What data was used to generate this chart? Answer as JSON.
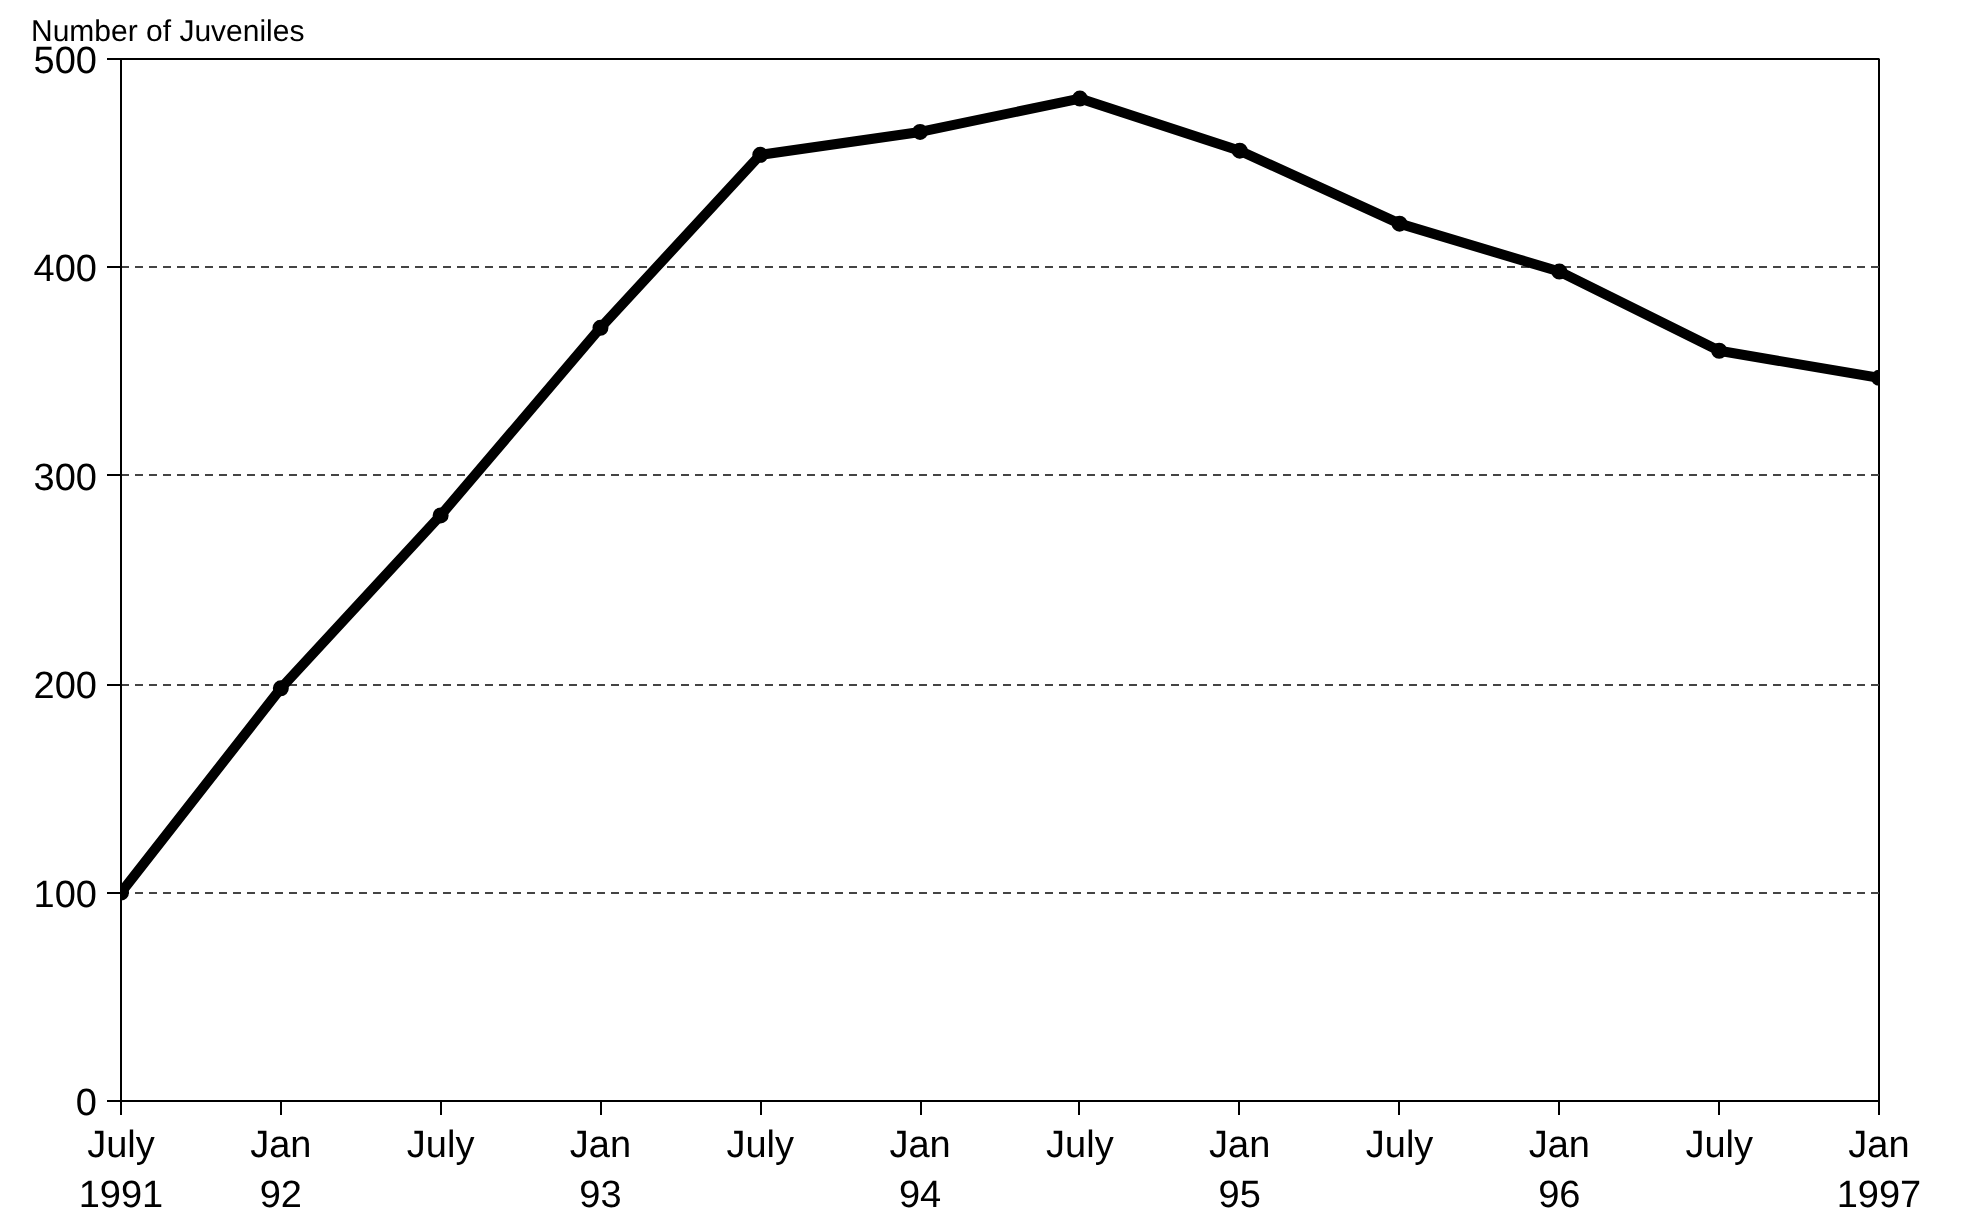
{
  "chart_data": {
    "type": "line",
    "ylabel": "Number of Juveniles",
    "categories": [
      "July\n1991",
      "Jan\n92",
      "July",
      "Jan\n93",
      "July",
      "Jan\n94",
      "July",
      "Jan\n95",
      "July",
      "Jan\n96",
      "July",
      "Jan\n1997"
    ],
    "series": [
      {
        "color": "#000000",
        "values": [
          100,
          198,
          281,
          371,
          454,
          465,
          481,
          456,
          421,
          398,
          360,
          347
        ]
      }
    ],
    "ylim": [
      0,
      500
    ],
    "yticks": [
      0,
      100,
      200,
      300,
      400,
      500
    ],
    "grid": "y",
    "marker": "circle",
    "line_style": "solid"
  }
}
